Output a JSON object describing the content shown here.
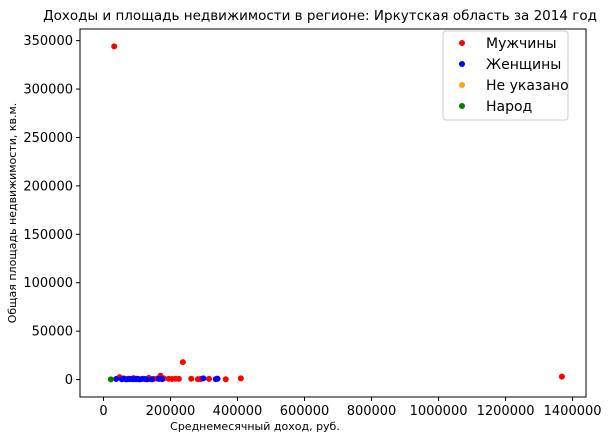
{
  "chart_data": {
    "type": "scatter",
    "title": "Доходы и площадь недвижимости в регионе: Иркутская область за 2014 год",
    "xlabel": "Среднемесячный доход, руб.",
    "ylabel": "Общая площадь недвижимости, кв.м.",
    "xlim": [
      -70000,
      1440000
    ],
    "ylim": [
      -18000,
      362000
    ],
    "xticks": [
      0,
      200000,
      400000,
      600000,
      800000,
      1000000,
      1200000,
      1400000
    ],
    "xtick_labels": [
      "0",
      "200000",
      "400000",
      "600000",
      "800000",
      "1000000",
      "1200000",
      "1400000"
    ],
    "yticks": [
      0,
      50000,
      100000,
      150000,
      200000,
      250000,
      300000,
      350000
    ],
    "ytick_labels": [
      "0",
      "50000",
      "100000",
      "150000",
      "200000",
      "250000",
      "300000",
      "350000"
    ],
    "grid": false,
    "legend_position": "top-right",
    "series": [
      {
        "name": "Мужчины",
        "color": "#ff0000",
        "points": [
          [
            32000,
            344000
          ],
          [
            1368000,
            3000
          ],
          [
            237000,
            18000
          ],
          [
            48000,
            2500
          ],
          [
            60000,
            1200
          ],
          [
            75000,
            800
          ],
          [
            90000,
            1500
          ],
          [
            105000,
            600
          ],
          [
            120000,
            900
          ],
          [
            135000,
            1800
          ],
          [
            150000,
            700
          ],
          [
            160000,
            1000
          ],
          [
            170000,
            4000
          ],
          [
            180000,
            1200
          ],
          [
            195000,
            800
          ],
          [
            205000,
            600
          ],
          [
            215000,
            900
          ],
          [
            225000,
            700
          ],
          [
            262000,
            900
          ],
          [
            282000,
            400
          ],
          [
            290000,
            600
          ],
          [
            315000,
            700
          ],
          [
            340000,
            1000
          ],
          [
            365000,
            300
          ],
          [
            410000,
            1200
          ],
          [
            100000,
            300
          ],
          [
            140000,
            400
          ]
        ]
      },
      {
        "name": "Женщины",
        "color": "#0000ff",
        "points": [
          [
            38000,
            600
          ],
          [
            55000,
            300
          ],
          [
            62000,
            900
          ],
          [
            68000,
            200
          ],
          [
            72000,
            500
          ],
          [
            78000,
            400
          ],
          [
            82000,
            700
          ],
          [
            88000,
            300
          ],
          [
            95000,
            500
          ],
          [
            100000,
            800
          ],
          [
            108000,
            200
          ],
          [
            115000,
            600
          ],
          [
            125000,
            400
          ],
          [
            145000,
            300
          ],
          [
            165000,
            700
          ],
          [
            175000,
            500
          ],
          [
            298000,
            1200
          ],
          [
            335000,
            400
          ],
          [
            340000,
            800
          ],
          [
            130000,
            200
          ]
        ]
      },
      {
        "name": "Не указано",
        "color": "#ffa500",
        "points": []
      },
      {
        "name": "Народ",
        "color": "#008000",
        "points": [
          [
            22000,
            200
          ]
        ]
      }
    ]
  }
}
